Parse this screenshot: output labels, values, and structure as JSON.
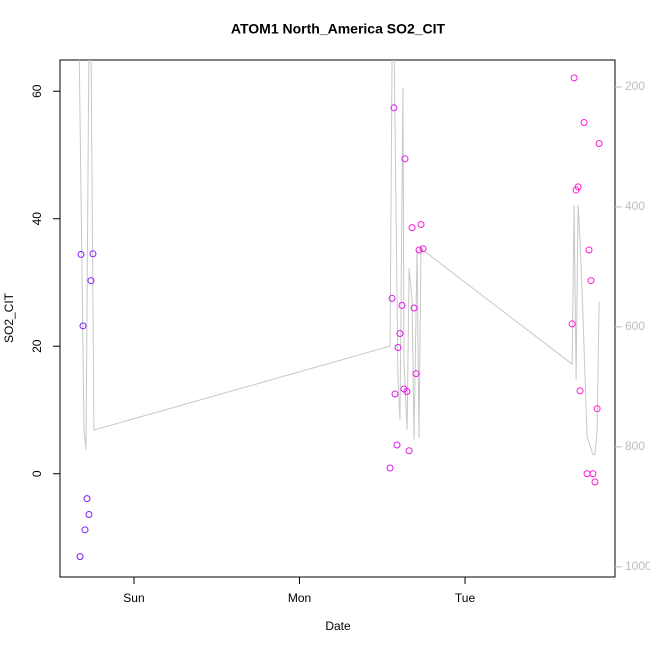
{
  "chart_data": {
    "type": "scatter",
    "title": "ATOM1 North_America SO2_CIT",
    "xlabel": "Date",
    "ylabel": "SO2_CIT",
    "xlim": [
      -0.447,
      2.906
    ],
    "xticks": [
      {
        "value": 0,
        "label": "Sun"
      },
      {
        "value": 1,
        "label": "Mon"
      },
      {
        "value": 2,
        "label": "Tue"
      }
    ],
    "ylim": [
      -16.2,
      64.9
    ],
    "yticks": [
      0,
      20,
      40,
      60
    ],
    "y2lim": [
      1017,
      155
    ],
    "y2ticks": [
      200,
      400,
      600,
      800,
      1000
    ],
    "series": [
      {
        "type": "line",
        "axis": "y2",
        "color": "#c8c8c8",
        "x": [
          -0.332,
          -0.302,
          -0.29,
          -0.272,
          -0.26,
          -0.242,
          1.547,
          1.559,
          1.571,
          1.595,
          1.607,
          1.625,
          1.631,
          1.65,
          1.662,
          1.68,
          1.692,
          1.71,
          1.722,
          1.734,
          1.746,
          2.647,
          2.659,
          2.671,
          2.683,
          2.695,
          2.713,
          2.737,
          2.773,
          2.785,
          2.798,
          2.81
        ],
        "values": [
          120,
          772,
          805,
          122,
          122,
          772,
          632,
          155,
          122,
          688,
          755,
          202,
          655,
          772,
          502,
          555,
          788,
          472,
          785,
          468,
          472,
          662,
          397,
          688,
          397,
          455,
          585,
          783,
          813,
          813,
          772,
          558
        ]
      },
      {
        "type": "scatter",
        "x": [
          -0.326,
          -0.32,
          -0.308,
          -0.296,
          -0.284,
          -0.272,
          -0.26,
          -0.248,
          1.547,
          1.559,
          1.571,
          1.577,
          1.589,
          1.595,
          1.607,
          1.619,
          1.631,
          1.637,
          1.649,
          1.662,
          1.68,
          1.692,
          1.704,
          1.722,
          1.734,
          1.746,
          2.647,
          2.659,
          2.671,
          2.683,
          2.695,
          2.719,
          2.737,
          2.749,
          2.761,
          2.773,
          2.785,
          2.798,
          2.81
        ],
        "values": [
          -13.0,
          34.4,
          23.2,
          -8.8,
          -3.9,
          -6.4,
          30.3,
          34.5,
          0.9,
          27.5,
          57.4,
          12.5,
          4.5,
          19.8,
          22.0,
          26.4,
          13.3,
          49.4,
          12.9,
          3.6,
          38.6,
          26.0,
          15.7,
          35.1,
          39.1,
          35.3,
          23.5,
          62.1,
          44.5,
          45.0,
          13.0,
          55.1,
          0.0,
          35.1,
          30.3,
          0.0,
          -1.3,
          10.2,
          51.8
        ],
        "colors": [
          "#7a1cff",
          "#7c1cff",
          "#7e1cff",
          "#801cff",
          "#821cff",
          "#841cff",
          "#861cff",
          "#881cff",
          "#d21cf0",
          "#d41cef",
          "#d61cee",
          "#d81ced",
          "#da1cec",
          "#dc1ceb",
          "#de1cea",
          "#e01ce9",
          "#e21ce8",
          "#e41ce7",
          "#e61ce6",
          "#e81ce5",
          "#ea1ce4",
          "#ec1ce3",
          "#ee1ce2",
          "#f01ce1",
          "#f21ce0",
          "#f41cdf",
          "#ff1cd8",
          "#ff1cd7",
          "#ff1cd6",
          "#ff1cd5",
          "#ff1cd4",
          "#ff1cd3",
          "#ff1cd2",
          "#ff1cd1",
          "#ff1cd0",
          "#ff1ccf",
          "#ff1cce",
          "#ff1ccd",
          "#ff1ccc"
        ]
      }
    ]
  }
}
